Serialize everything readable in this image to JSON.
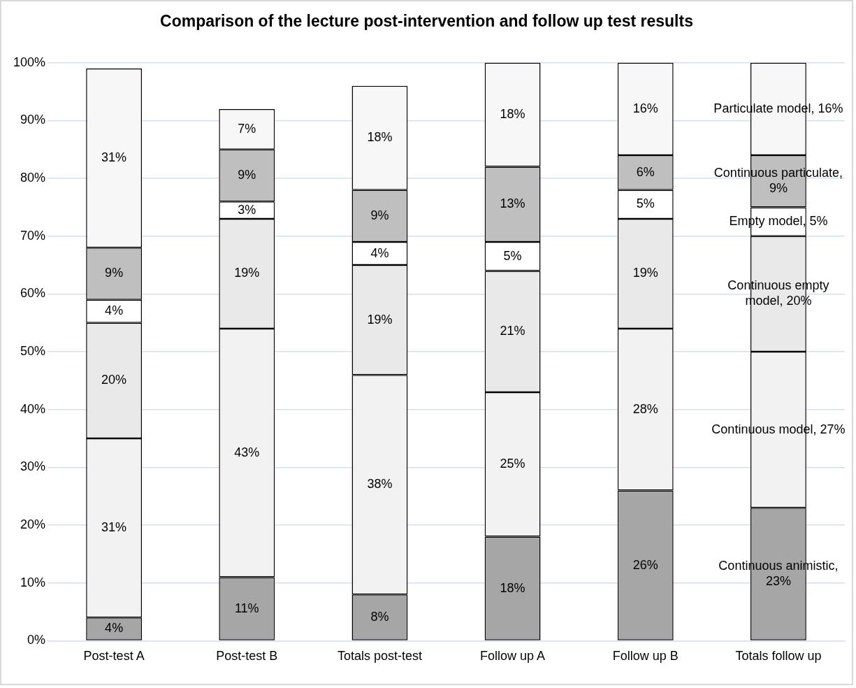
{
  "chart_data": {
    "type": "bar",
    "stacked": true,
    "title": "Comparison of the lecture post-intervention and follow up test results",
    "categories": [
      "Post-test A",
      "Post-test B",
      "Totals post-test",
      "Follow up A",
      "Follow up B",
      "Totals follow up"
    ],
    "ylim": [
      0,
      100
    ],
    "yticks": [
      {
        "value": 0,
        "label": "0%"
      },
      {
        "value": 10,
        "label": "10%"
      },
      {
        "value": 20,
        "label": "20%"
      },
      {
        "value": 30,
        "label": "30%"
      },
      {
        "value": 40,
        "label": "40%"
      },
      {
        "value": 50,
        "label": "50%"
      },
      {
        "value": 60,
        "label": "60%"
      },
      {
        "value": 70,
        "label": "70%"
      },
      {
        "value": 80,
        "label": "80%"
      },
      {
        "value": 90,
        "label": "90%"
      },
      {
        "value": 100,
        "label": "100%"
      }
    ],
    "grid": "y",
    "legend": false,
    "series": [
      {
        "color": "#a6a6a6",
        "values": [
          4,
          11,
          8,
          18,
          26,
          23
        ],
        "value_labels": [
          "4%",
          "11%",
          "8%",
          "18%",
          "26%",
          "Continuous animistic, 23%"
        ]
      },
      {
        "color": "#f2f2f2",
        "values": [
          31,
          43,
          38,
          25,
          28,
          27
        ],
        "value_labels": [
          "31%",
          "43%",
          "38%",
          "25%",
          "28%",
          "Continuous model, 27%"
        ]
      },
      {
        "color": "#e9e9e9",
        "values": [
          20,
          19,
          19,
          21,
          19,
          20
        ],
        "value_labels": [
          "20%",
          "19%",
          "19%",
          "21%",
          "19%",
          "Continuous empty model, 20%"
        ]
      },
      {
        "color": "#ffffff",
        "values": [
          4,
          3,
          4,
          5,
          5,
          5
        ],
        "value_labels": [
          "4%",
          "3%",
          "4%",
          "5%",
          "5%",
          "Empty model, 5%"
        ]
      },
      {
        "color": "#bfbfbf",
        "values": [
          9,
          9,
          9,
          13,
          6,
          9
        ],
        "value_labels": [
          "9%",
          "9%",
          "9%",
          "13%",
          "6%",
          "Continuous particulate, 9%"
        ]
      },
      {
        "color": "#f7f7f7",
        "values": [
          31,
          7,
          18,
          18,
          16,
          16
        ],
        "value_labels": [
          "31%",
          "7%",
          "18%",
          "18%",
          "16%",
          "Particulate model, 16%"
        ]
      }
    ]
  }
}
